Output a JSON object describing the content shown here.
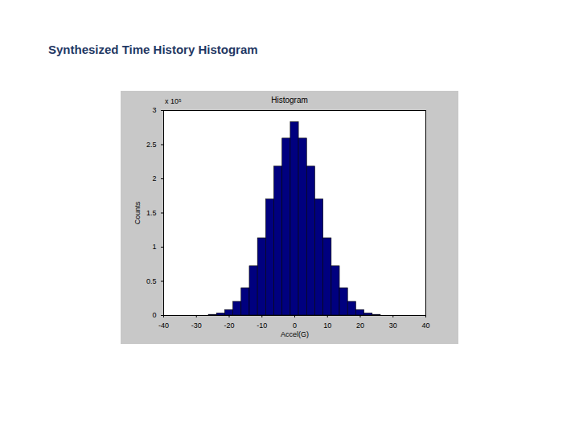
{
  "page_title": "Synthesized Time History Histogram",
  "chart_data": {
    "type": "histogram",
    "title": "Histogram",
    "x_label": "Accel(G)",
    "y_label": "Counts",
    "bins": [
      -26.25,
      -23.75,
      -21.25,
      -18.75,
      -16.25,
      -13.75,
      -11.25,
      -8.75,
      -6.25,
      -3.75,
      -1.25,
      1.25,
      3.75,
      6.25,
      8.75,
      11.25,
      13.75,
      16.25,
      18.75,
      21.25,
      23.75,
      26.25
    ],
    "values": [
      0.01,
      0.03,
      0.08,
      0.2,
      0.4,
      0.72,
      1.13,
      1.7,
      2.18,
      2.59,
      2.83,
      2.59,
      2.18,
      1.7,
      1.13,
      0.72,
      0.4,
      0.2,
      0.08,
      0.03,
      0.01
    ],
    "color": "#00007f",
    "xlim": [
      -40,
      40
    ],
    "xticks": [
      -40,
      -30,
      -20,
      -10,
      0,
      10,
      20,
      30,
      40
    ],
    "ylim": [
      0,
      3
    ],
    "yticks": [
      0,
      0.5,
      1,
      1.5,
      2,
      2.5,
      3
    ],
    "annotations": [
      "x 10⁵"
    ]
  }
}
